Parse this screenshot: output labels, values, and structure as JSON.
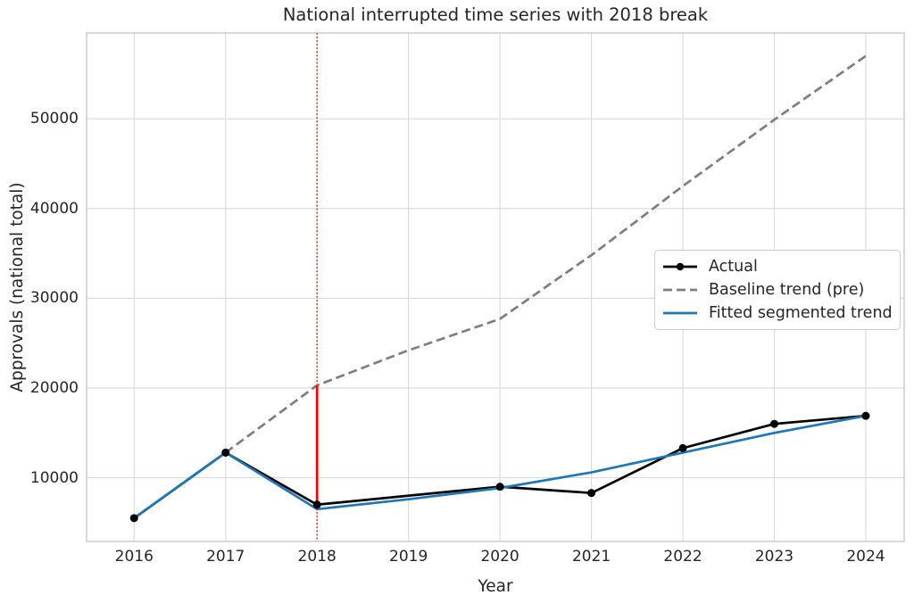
{
  "chart_data": {
    "type": "line",
    "title": "National interrupted time series with 2018 break",
    "xlabel": "Year",
    "ylabel": "Approvals (national total)",
    "x_ticks": [
      2016,
      2017,
      2018,
      2019,
      2020,
      2021,
      2022,
      2023,
      2024
    ],
    "y_ticks": [
      10000,
      20000,
      30000,
      40000,
      50000
    ],
    "xlim": [
      2015.48,
      2024.42
    ],
    "ylim": [
      2900,
      59560
    ],
    "grid": true,
    "legend_position": "center right",
    "series": [
      {
        "name": "Actual",
        "color": "#000000",
        "style": "solid",
        "marker": "circle",
        "x": [
          2016,
          2017,
          2018,
          2020,
          2021,
          2022,
          2023,
          2024
        ],
        "values": [
          5500,
          12800,
          7000,
          9000,
          8300,
          13300,
          16000,
          16900
        ],
        "note": "no marker/data point at 2019; line connects 2018 to 2020"
      },
      {
        "name": "Baseline trend (pre)",
        "color": "#7f7f7f",
        "style": "dashed",
        "marker": "none",
        "x": [
          2017,
          2018,
          2019,
          2020,
          2021,
          2022,
          2023,
          2024
        ],
        "values": [
          12800,
          20300,
          24200,
          27700,
          34800,
          42500,
          49900,
          57000
        ]
      },
      {
        "name": "Fitted segmented trend",
        "color": "#1f77b4",
        "style": "solid",
        "marker": "none",
        "x": [
          2016,
          2017,
          2018,
          2019,
          2020,
          2021,
          2022,
          2023,
          2024
        ],
        "values": [
          5500,
          12800,
          6500,
          7600,
          8850,
          10600,
          12800,
          15000,
          16900
        ]
      }
    ],
    "annotations": {
      "break_line": {
        "x": 2018,
        "color": "#ff0000",
        "style": "dotted",
        "orientation": "vertical"
      },
      "gap_segment": {
        "x": 2018,
        "y_from": 6500,
        "y_to": 20300,
        "color": "#ff0000",
        "style": "solid"
      }
    }
  },
  "colors": {
    "grid": "#dcdcdc",
    "spine": "#c9c9c9",
    "text": "#262626",
    "background": "#ffffff"
  }
}
